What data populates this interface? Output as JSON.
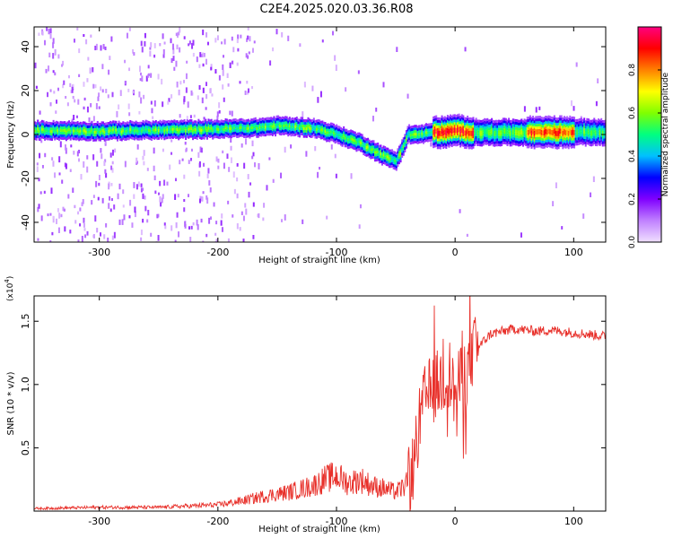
{
  "title": "C2E4.2025.020.03.36.R08",
  "chart_data": [
    {
      "type": "heatmap",
      "xlabel": "Height of straight line (km)",
      "ylabel": "Frequency (Hz)",
      "xlim": [
        -355,
        127
      ],
      "ylim": [
        -49,
        49
      ],
      "xticks": [
        -300,
        -200,
        -100,
        0,
        100
      ],
      "yticks": [
        -40,
        -20,
        0,
        20,
        40
      ],
      "background": "#ffffff",
      "colorbar": {
        "label": "Normalized spectral amplitude",
        "range": [
          0,
          1
        ],
        "ticks": [
          "0.0",
          "0.2",
          "0.4",
          "0.6",
          "0.8"
        ],
        "tick_values": [
          0,
          0.2,
          0.4,
          0.6,
          0.8
        ],
        "colors": [
          "#f0e0ff",
          "#c080ff",
          "#8000ff",
          "#0000ff",
          "#00c0ff",
          "#00ff80",
          "#80ff00",
          "#ffff00",
          "#ff8000",
          "#ff0000",
          "#ff0080"
        ]
      },
      "signal_track": {
        "x": [
          -355,
          -300,
          -250,
          -200,
          -170,
          -150,
          -120,
          -100,
          -80,
          -60,
          -50,
          -45,
          -40,
          -30,
          -20,
          -10,
          0,
          10,
          40,
          80,
          127
        ],
        "freq": [
          2,
          1.5,
          2,
          2.5,
          3,
          4,
          3,
          0,
          -4,
          -10,
          -12,
          -6,
          0,
          0,
          1,
          1,
          2,
          1,
          1,
          1,
          1
        ]
      }
    },
    {
      "type": "line",
      "xlabel": "Height of straight line (km)",
      "ylabel": "SNR (10 * v/v)",
      "scale_note": "(x10",
      "scale_exp": "4",
      "xlim": [
        -355,
        127
      ],
      "ylim": [
        0,
        1.7
      ],
      "xticks": [
        -300,
        -200,
        -100,
        0,
        100
      ],
      "yticks": [
        0.5,
        1.0,
        1.5
      ],
      "ytick_labels": [
        "0.5",
        "1.0",
        "1.5"
      ],
      "series": [
        {
          "color": "#e8302a",
          "x": [
            -355,
            -300,
            -250,
            -200,
            -180,
            -160,
            -140,
            -120,
            -110,
            -100,
            -90,
            -80,
            -70,
            -60,
            -50,
            -45,
            -40,
            -35,
            -30,
            -25,
            -20,
            -15,
            -10,
            -5,
            0,
            5,
            10,
            15,
            20,
            25,
            30,
            40,
            50,
            60,
            70,
            80,
            90,
            100,
            110,
            127
          ],
          "y": [
            0.02,
            0.03,
            0.03,
            0.05,
            0.08,
            0.12,
            0.15,
            0.2,
            0.25,
            0.28,
            0.22,
            0.25,
            0.2,
            0.18,
            0.15,
            0.18,
            0.22,
            0.35,
            0.7,
            0.9,
            0.95,
            1.0,
            1.05,
            1.1,
            0.9,
            1.05,
            1.1,
            1.25,
            1.3,
            1.35,
            1.4,
            1.42,
            1.44,
            1.43,
            1.42,
            1.43,
            1.42,
            1.41,
            1.4,
            1.38
          ]
        }
      ]
    }
  ]
}
